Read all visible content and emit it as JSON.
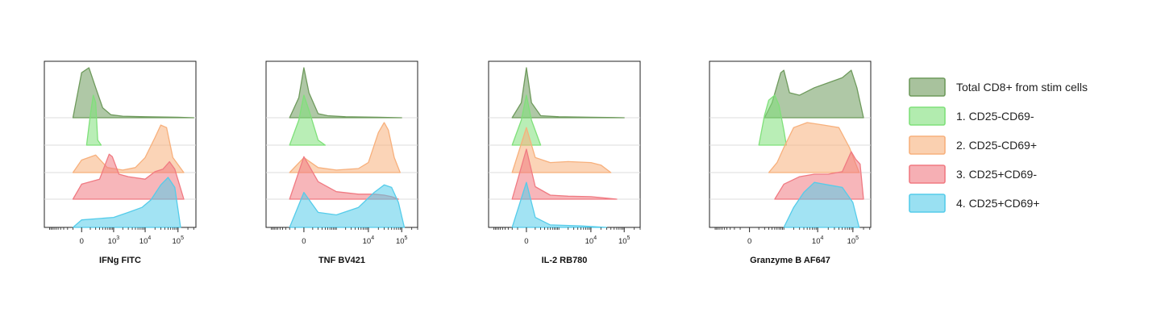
{
  "chart_data": [
    {
      "type": "area",
      "xlabel": "IFNg FITC",
      "x_scale": "biexponential",
      "tick_labels": [
        "0",
        "10^3",
        "10^4",
        "10^5"
      ],
      "tick_values": [
        0,
        1000,
        10000,
        100000
      ],
      "series": [
        {
          "name": "Total CD8+ from stim cells",
          "color": "#6e9a5c",
          "x": [
            -100,
            0,
            80,
            200,
            400,
            800,
            2000,
            10000,
            100000,
            300000
          ],
          "y": [
            0.0,
            0.9,
            1.0,
            0.6,
            0.2,
            0.06,
            0.03,
            0.02,
            0.01,
            0.0
          ]
        },
        {
          "name": "1. CD25-CD69-",
          "color": "#7fe07a",
          "x": [
            50,
            100,
            150,
            200,
            250,
            350
          ],
          "y": [
            0.0,
            0.6,
            1.0,
            0.85,
            0.1,
            0.0
          ]
        },
        {
          "name": "2. CD25-CD69+",
          "color": "#f7b07c",
          "x": [
            -100,
            0,
            200,
            600,
            2000,
            5000,
            10000,
            20000,
            30000,
            45000,
            70000,
            150000
          ],
          "y": [
            0.0,
            0.25,
            0.35,
            0.1,
            0.05,
            0.1,
            0.3,
            0.7,
            0.95,
            0.9,
            0.3,
            0.0
          ]
        },
        {
          "name": "3. CD25+CD69-",
          "color": "#f07a82",
          "x": [
            -100,
            0,
            300,
            700,
            900,
            1500,
            3000,
            10000,
            20000,
            35000,
            55000,
            80000,
            150000
          ],
          "y": [
            0.0,
            0.3,
            0.4,
            0.9,
            0.85,
            0.5,
            0.45,
            0.4,
            0.55,
            0.6,
            0.75,
            0.6,
            0.0
          ]
        },
        {
          "name": "4. CD25+CD69+",
          "color": "#55ccea",
          "x": [
            -100,
            0,
            1000,
            3000,
            8000,
            15000,
            30000,
            50000,
            80000,
            120000
          ],
          "y": [
            0.0,
            0.15,
            0.2,
            0.3,
            0.4,
            0.55,
            0.85,
            1.0,
            0.8,
            0.0
          ]
        }
      ]
    },
    {
      "type": "area",
      "xlabel": "TNF BV421",
      "x_scale": "biexponential",
      "tick_labels": [
        "0",
        "10^4",
        "10^5"
      ],
      "tick_values": [
        0,
        10000,
        100000
      ],
      "series": [
        {
          "name": "Total CD8+ from stim cells",
          "color": "#6e9a5c",
          "x": [
            -200,
            -50,
            0,
            50,
            200,
            500,
            2000,
            20000,
            100000
          ],
          "y": [
            0.0,
            0.4,
            1.0,
            0.5,
            0.08,
            0.04,
            0.02,
            0.01,
            0.0
          ]
        },
        {
          "name": "1. CD25-CD69-",
          "color": "#7fe07a",
          "x": [
            -200,
            -50,
            0,
            50,
            200,
            400
          ],
          "y": [
            0.0,
            0.5,
            1.0,
            0.7,
            0.1,
            0.0
          ]
        },
        {
          "name": "2. CD25-CD69+",
          "color": "#f7b07c",
          "x": [
            -200,
            0,
            200,
            1000,
            5000,
            10000,
            20000,
            30000,
            40000,
            60000,
            90000
          ],
          "y": [
            0.0,
            0.3,
            0.1,
            0.05,
            0.08,
            0.2,
            0.8,
            1.0,
            0.85,
            0.3,
            0.0
          ]
        },
        {
          "name": "3. CD25+CD69-",
          "color": "#f07a82",
          "x": [
            -200,
            0,
            200,
            1000,
            5000,
            15000,
            30000,
            50000,
            80000
          ],
          "y": [
            0.0,
            0.85,
            0.35,
            0.15,
            0.1,
            0.1,
            0.08,
            0.05,
            0.0
          ]
        },
        {
          "name": "4. CD25+CD69+",
          "color": "#55ccea",
          "x": [
            -200,
            0,
            200,
            1000,
            5000,
            15000,
            30000,
            50000,
            80000,
            120000
          ],
          "y": [
            0.0,
            0.7,
            0.3,
            0.25,
            0.4,
            0.7,
            0.85,
            0.8,
            0.5,
            0.0
          ]
        }
      ]
    },
    {
      "type": "area",
      "xlabel": "IL-2 RB780",
      "x_scale": "biexponential",
      "tick_labels": [
        "0",
        "10^4",
        "10^5"
      ],
      "tick_values": [
        0,
        10000,
        100000
      ],
      "series": [
        {
          "name": "Total CD8+ from stim cells",
          "color": "#6e9a5c",
          "x": [
            -200,
            -50,
            0,
            50,
            200,
            1000,
            10000,
            100000
          ],
          "y": [
            0.0,
            0.3,
            1.0,
            0.3,
            0.04,
            0.02,
            0.01,
            0.0
          ]
        },
        {
          "name": "1. CD25-CD69-",
          "color": "#7fe07a",
          "x": [
            -200,
            -50,
            0,
            50,
            200
          ],
          "y": [
            0.0,
            0.5,
            1.0,
            0.5,
            0.0
          ]
        },
        {
          "name": "2. CD25-CD69+",
          "color": "#f7b07c",
          "x": [
            -200,
            0,
            100,
            500,
            2000,
            10000,
            20000,
            40000
          ],
          "y": [
            0.0,
            0.9,
            0.3,
            0.2,
            0.22,
            0.2,
            0.15,
            0.0
          ]
        },
        {
          "name": "3. CD25+CD69-",
          "color": "#f07a82",
          "x": [
            -200,
            0,
            100,
            500,
            2000,
            10000,
            30000,
            60000
          ],
          "y": [
            0.0,
            1.0,
            0.25,
            0.08,
            0.06,
            0.05,
            0.02,
            0.0
          ]
        },
        {
          "name": "4. CD25+CD69+",
          "color": "#55ccea",
          "x": [
            -200,
            0,
            100,
            500,
            5000,
            30000
          ],
          "y": [
            0.0,
            0.9,
            0.2,
            0.05,
            0.03,
            0.0
          ]
        }
      ]
    },
    {
      "type": "area",
      "xlabel": "Granzyme B AF647",
      "x_scale": "biexponential",
      "tick_labels": [
        "0",
        "10^4",
        "10^5"
      ],
      "tick_values": [
        0,
        10000,
        100000
      ],
      "series": [
        {
          "name": "Total CD8+ from stim cells",
          "color": "#6e9a5c",
          "x": [
            200,
            400,
            800,
            1000,
            1500,
            3000,
            8000,
            20000,
            50000,
            90000,
            130000,
            200000
          ],
          "y": [
            0.0,
            0.3,
            0.9,
            0.95,
            0.5,
            0.45,
            0.6,
            0.7,
            0.8,
            0.95,
            0.6,
            0.0
          ]
        },
        {
          "name": "1. CD25-CD69-",
          "color": "#7fe07a",
          "x": [
            100,
            200,
            300,
            500,
            700,
            1000,
            1200
          ],
          "y": [
            0.0,
            0.6,
            0.9,
            1.0,
            0.8,
            0.3,
            0.0
          ]
        },
        {
          "name": "2. CD25-CD69+",
          "color": "#f7b07c",
          "x": [
            300,
            600,
            1000,
            2000,
            5000,
            15000,
            40000,
            80000,
            150000
          ],
          "y": [
            0.0,
            0.2,
            0.5,
            0.9,
            1.0,
            0.95,
            0.9,
            0.5,
            0.0
          ]
        },
        {
          "name": "3. CD25+CD69-",
          "color": "#f07a82",
          "x": [
            500,
            1000,
            3000,
            8000,
            20000,
            50000,
            90000,
            120000,
            160000,
            200000
          ],
          "y": [
            0.0,
            0.3,
            0.45,
            0.5,
            0.5,
            0.55,
            0.95,
            0.8,
            0.7,
            0.0
          ]
        },
        {
          "name": "4. CD25+CD69+",
          "color": "#55ccea",
          "x": [
            1000,
            2000,
            4000,
            8000,
            20000,
            50000,
            100000,
            150000
          ],
          "y": [
            0.0,
            0.4,
            0.7,
            0.9,
            0.85,
            0.8,
            0.5,
            0.0
          ]
        }
      ]
    }
  ],
  "legend": [
    {
      "label": "Total CD8+ from stim cells",
      "color": "#6e9a5c"
    },
    {
      "label": "1. CD25-CD69-",
      "color": "#7fe07a"
    },
    {
      "label": "2. CD25-CD69+",
      "color": "#f7b07c"
    },
    {
      "label": "3. CD25+CD69-",
      "color": "#f07a82"
    },
    {
      "label": "4. CD25+CD69+",
      "color": "#55ccea"
    }
  ]
}
